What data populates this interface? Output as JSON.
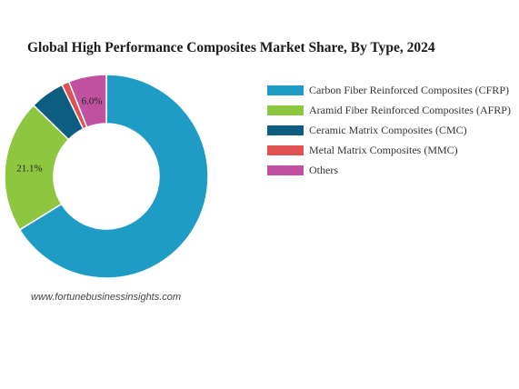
{
  "chart_data": {
    "type": "pie",
    "title": "Global High Performance Composites Market Share, By Type, 2024",
    "series": [
      {
        "name": "Carbon Fiber Reinforced Composites (CFRP)",
        "value": 66.2,
        "color": "#1e9cc6"
      },
      {
        "name": "Aramid Fiber Reinforced Composites (AFRP)",
        "value": 21.1,
        "color": "#8dc63f"
      },
      {
        "name": "Ceramic Matrix Composites (CMC)",
        "value": 5.5,
        "color": "#0d5d80"
      },
      {
        "name": "Metal Matrix Composites (MMC)",
        "value": 1.2,
        "color": "#e05252"
      },
      {
        "name": "Others",
        "value": 6.0,
        "color": "#c050a0"
      }
    ],
    "data_labels": [
      {
        "index": 1,
        "text": "21.1%"
      },
      {
        "index": 4,
        "text": "6.0%"
      }
    ],
    "legend_placement": "right"
  },
  "source": "www.fortunebusinessinsights.com"
}
